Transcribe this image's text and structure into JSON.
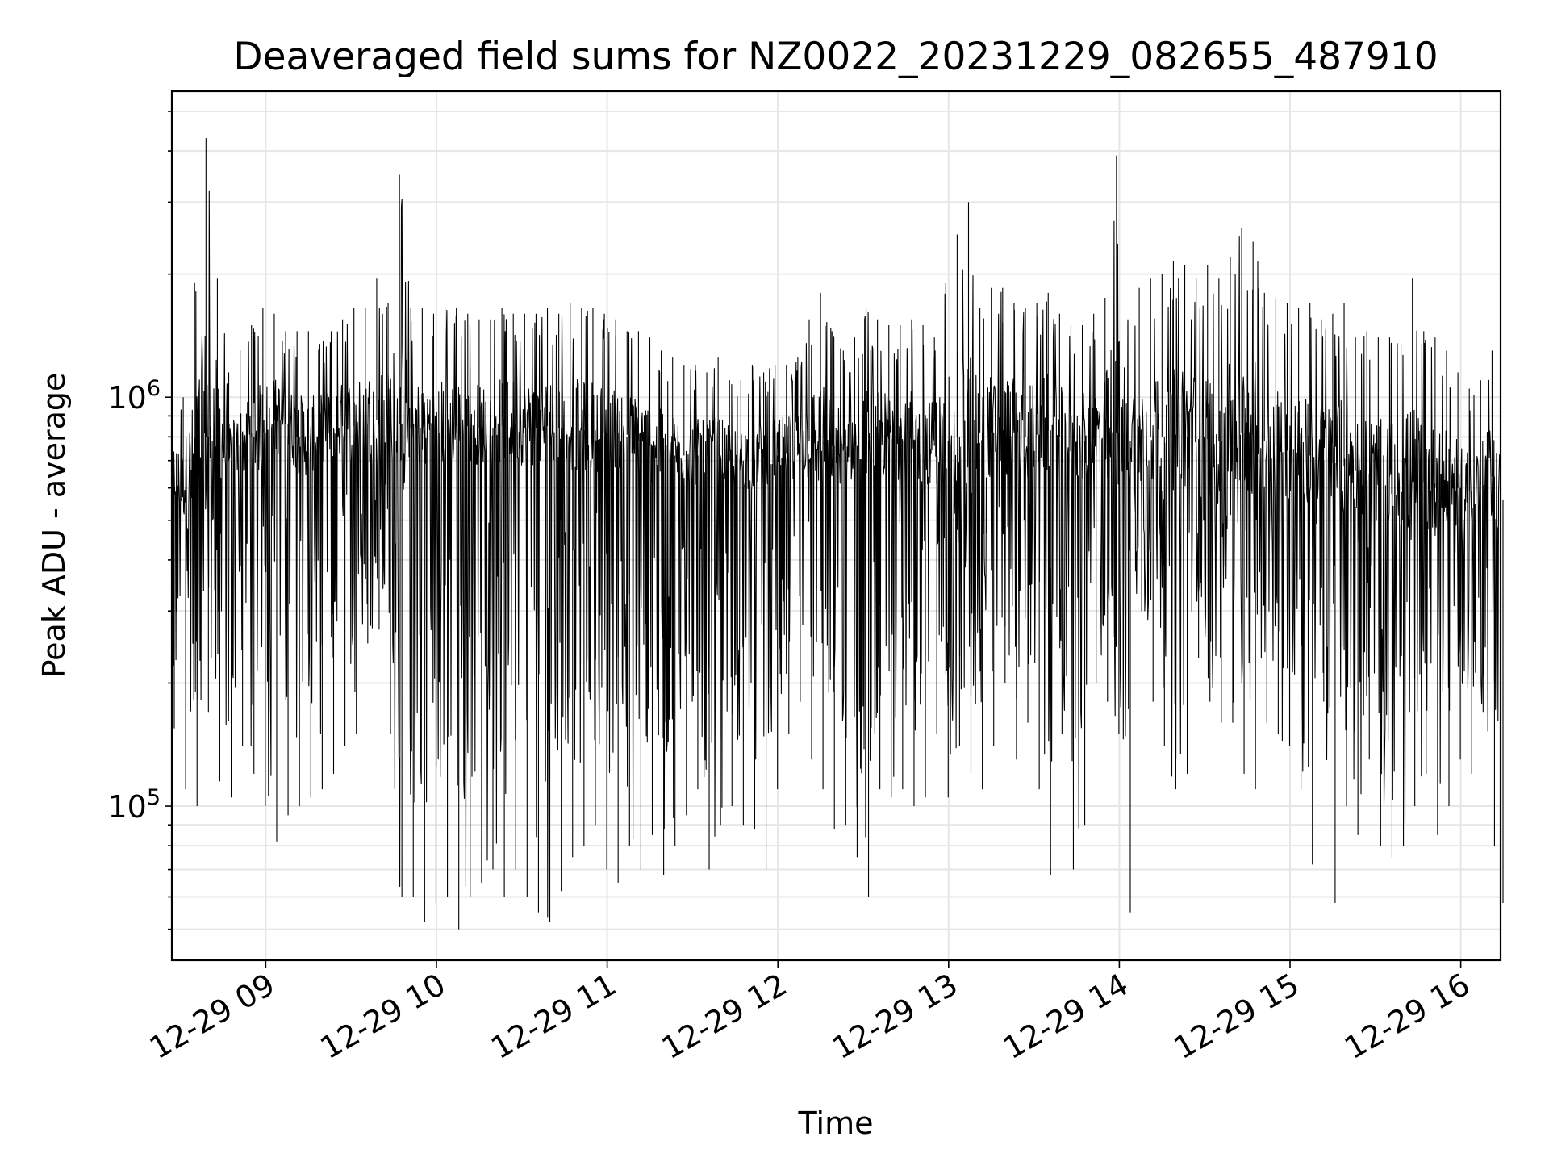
{
  "chart_data": {
    "type": "line",
    "title": "Deaveraged field sums for NZ0022_20231229_082655_487910",
    "xlabel": "Time",
    "ylabel": "Peak ADU - average",
    "yscale": "log",
    "ylim": [
      42000,
      5600000
    ],
    "xlim": [
      "12-29 08:27",
      "12-29 16:14"
    ],
    "grid": true,
    "line_color": "#000000",
    "x_ticks": [
      "12-29 09",
      "12-29 10",
      "12-29 11",
      "12-29 12",
      "12-29 13",
      "12-29 14",
      "12-29 15",
      "12-29 16"
    ],
    "y_ticks": [
      {
        "base": "10",
        "exp": "5",
        "value": 100000
      },
      {
        "base": "10",
        "exp": "6",
        "value": 1000000
      }
    ],
    "series": [
      {
        "x": [
          "12-29 08:27",
          "12-29 08:31",
          "12-29 08:35",
          "12-29 08:39",
          "12-29 08:43",
          "12-29 08:47",
          "12-29 08:51",
          "12-29 08:55",
          "12-29 08:59",
          "12-29 09:03",
          "12-29 09:07",
          "12-29 09:11",
          "12-29 09:15",
          "12-29 09:19",
          "12-29 09:23",
          "12-29 09:27",
          "12-29 09:31",
          "12-29 09:35",
          "12-29 09:39",
          "12-29 09:43",
          "12-29 09:47",
          "12-29 09:51",
          "12-29 09:55",
          "12-29 09:59",
          "12-29 10:03",
          "12-29 10:07",
          "12-29 10:11",
          "12-29 10:15",
          "12-29 10:19",
          "12-29 10:23",
          "12-29 10:27",
          "12-29 10:31",
          "12-29 10:35",
          "12-29 10:39",
          "12-29 10:43",
          "12-29 10:47",
          "12-29 10:51",
          "12-29 10:55",
          "12-29 10:59",
          "12-29 11:03",
          "12-29 11:07",
          "12-29 11:11",
          "12-29 11:15",
          "12-29 11:19",
          "12-29 11:23",
          "12-29 11:27",
          "12-29 11:31",
          "12-29 11:35",
          "12-29 11:39",
          "12-29 11:43",
          "12-29 11:47",
          "12-29 11:51",
          "12-29 11:55",
          "12-29 11:59",
          "12-29 12:03",
          "12-29 12:07",
          "12-29 12:11",
          "12-29 12:15",
          "12-29 12:19",
          "12-29 12:23",
          "12-29 12:27",
          "12-29 12:31",
          "12-29 12:35",
          "12-29 12:39",
          "12-29 12:43",
          "12-29 12:47",
          "12-29 12:51",
          "12-29 12:55",
          "12-29 12:59",
          "12-29 13:03",
          "12-29 13:07",
          "12-29 13:11",
          "12-29 13:15",
          "12-29 13:19",
          "12-29 13:23",
          "12-29 13:27",
          "12-29 13:31",
          "12-29 13:35",
          "12-29 13:39",
          "12-29 13:43",
          "12-29 13:47",
          "12-29 13:51",
          "12-29 13:55",
          "12-29 13:59",
          "12-29 14:03",
          "12-29 14:07",
          "12-29 14:11",
          "12-29 14:15",
          "12-29 14:19",
          "12-29 14:23",
          "12-29 14:27",
          "12-29 14:31",
          "12-29 14:35",
          "12-29 14:39",
          "12-29 14:43",
          "12-29 14:47",
          "12-29 14:51",
          "12-29 14:55",
          "12-29 14:59",
          "12-29 15:03",
          "12-29 15:07",
          "12-29 15:11",
          "12-29 15:15",
          "12-29 15:19",
          "12-29 15:23",
          "12-29 15:27",
          "12-29 15:31",
          "12-29 15:35",
          "12-29 15:39",
          "12-29 15:43",
          "12-29 15:47",
          "12-29 15:51",
          "12-29 15:55",
          "12-29 15:59",
          "12-29 16:03",
          "12-29 16:07",
          "12-29 16:11",
          "12-29 16:14"
        ],
        "max": [
          1050000,
          1000000,
          1900000,
          4300000,
          1950000,
          1150000,
          1300000,
          1500000,
          1650000,
          1600000,
          1450000,
          1450000,
          1450000,
          1350000,
          1450000,
          1550000,
          1650000,
          1650000,
          1950000,
          1700000,
          3500000,
          1650000,
          1650000,
          1600000,
          1650000,
          1650000,
          1600000,
          1550000,
          1550000,
          1650000,
          1600000,
          1600000,
          1600000,
          1650000,
          1600000,
          1700000,
          1650000,
          1650000,
          1600000,
          1550000,
          1450000,
          1450000,
          1400000,
          1300000,
          1250000,
          1200000,
          1200000,
          1150000,
          1250000,
          1100000,
          1100000,
          1200000,
          1150000,
          1200000,
          1200000,
          1250000,
          1550000,
          1800000,
          1450000,
          1300000,
          1400000,
          1650000,
          1550000,
          1500000,
          1500000,
          1550000,
          1500000,
          1400000,
          1900000,
          2500000,
          3000000,
          1650000,
          1850000,
          1850000,
          1700000,
          1650000,
          1700000,
          1800000,
          1600000,
          1500000,
          1500000,
          1600000,
          1750000,
          3900000,
          1550000,
          1850000,
          1950000,
          2000000,
          2150000,
          2100000,
          1950000,
          2100000,
          1950000,
          2200000,
          2600000,
          2400000,
          1800000,
          1750000,
          1700000,
          1650000,
          1700000,
          1550000,
          1600000,
          1700000,
          1400000,
          1450000,
          1400000,
          1400000,
          1350000,
          1950000,
          1450000,
          1400000,
          1300000,
          1150000,
          1050000,
          1100000,
          1300000,
          1100000
        ],
        "mid": [
          650000,
          600000,
          650000,
          800000,
          850000,
          700000,
          750000,
          800000,
          820000,
          880000,
          860000,
          800000,
          780000,
          820000,
          840000,
          850000,
          850000,
          860000,
          880000,
          880000,
          860000,
          840000,
          830000,
          840000,
          840000,
          850000,
          850000,
          840000,
          840000,
          850000,
          860000,
          840000,
          840000,
          850000,
          840000,
          840000,
          830000,
          830000,
          820000,
          820000,
          810000,
          780000,
          760000,
          740000,
          720000,
          720000,
          720000,
          720000,
          720000,
          700000,
          700000,
          700000,
          710000,
          720000,
          730000,
          760000,
          780000,
          780000,
          760000,
          740000,
          760000,
          780000,
          790000,
          790000,
          780000,
          780000,
          760000,
          760000,
          780000,
          800000,
          840000,
          820000,
          820000,
          830000,
          820000,
          800000,
          810000,
          830000,
          800000,
          780000,
          780000,
          790000,
          800000,
          820000,
          780000,
          780000,
          800000,
          800000,
          810000,
          800000,
          790000,
          790000,
          780000,
          800000,
          820000,
          810000,
          780000,
          760000,
          740000,
          730000,
          720000,
          700000,
          690000,
          680000,
          660000,
          650000,
          640000,
          640000,
          620000,
          620000,
          620000,
          600000,
          600000,
          600000,
          590000,
          610000,
          640000,
          560000
        ],
        "min": [
          155000,
          110000,
          100000,
          170000,
          115000,
          105000,
          140000,
          120000,
          100000,
          82000,
          95000,
          100000,
          105000,
          110000,
          120000,
          140000,
          150000,
          250000,
          270000,
          150000,
          60000,
          60000,
          52000,
          58000,
          60000,
          50000,
          60000,
          65000,
          70000,
          60000,
          70000,
          60000,
          55000,
          52000,
          62000,
          75000,
          80000,
          90000,
          70000,
          65000,
          80000,
          70000,
          85000,
          68000,
          80000,
          95000,
          110000,
          70000,
          90000,
          100000,
          90000,
          88000,
          70000,
          110000,
          150000,
          180000,
          130000,
          110000,
          88000,
          90000,
          75000,
          60000,
          110000,
          105000,
          110000,
          100000,
          105000,
          150000,
          105000,
          140000,
          120000,
          110000,
          140000,
          200000,
          130000,
          160000,
          110000,
          68000,
          150000,
          70000,
          90000,
          200000,
          180000,
          150000,
          55000,
          300000,
          180000,
          140000,
          110000,
          120000,
          230000,
          180000,
          160000,
          160000,
          120000,
          110000,
          160000,
          150000,
          140000,
          110000,
          72000,
          180000,
          58000,
          100000,
          85000,
          130000,
          80000,
          75000,
          80000,
          100000,
          120000,
          85000,
          100000,
          130000,
          120000,
          170000,
          80000,
          58000
        ]
      }
    ]
  }
}
